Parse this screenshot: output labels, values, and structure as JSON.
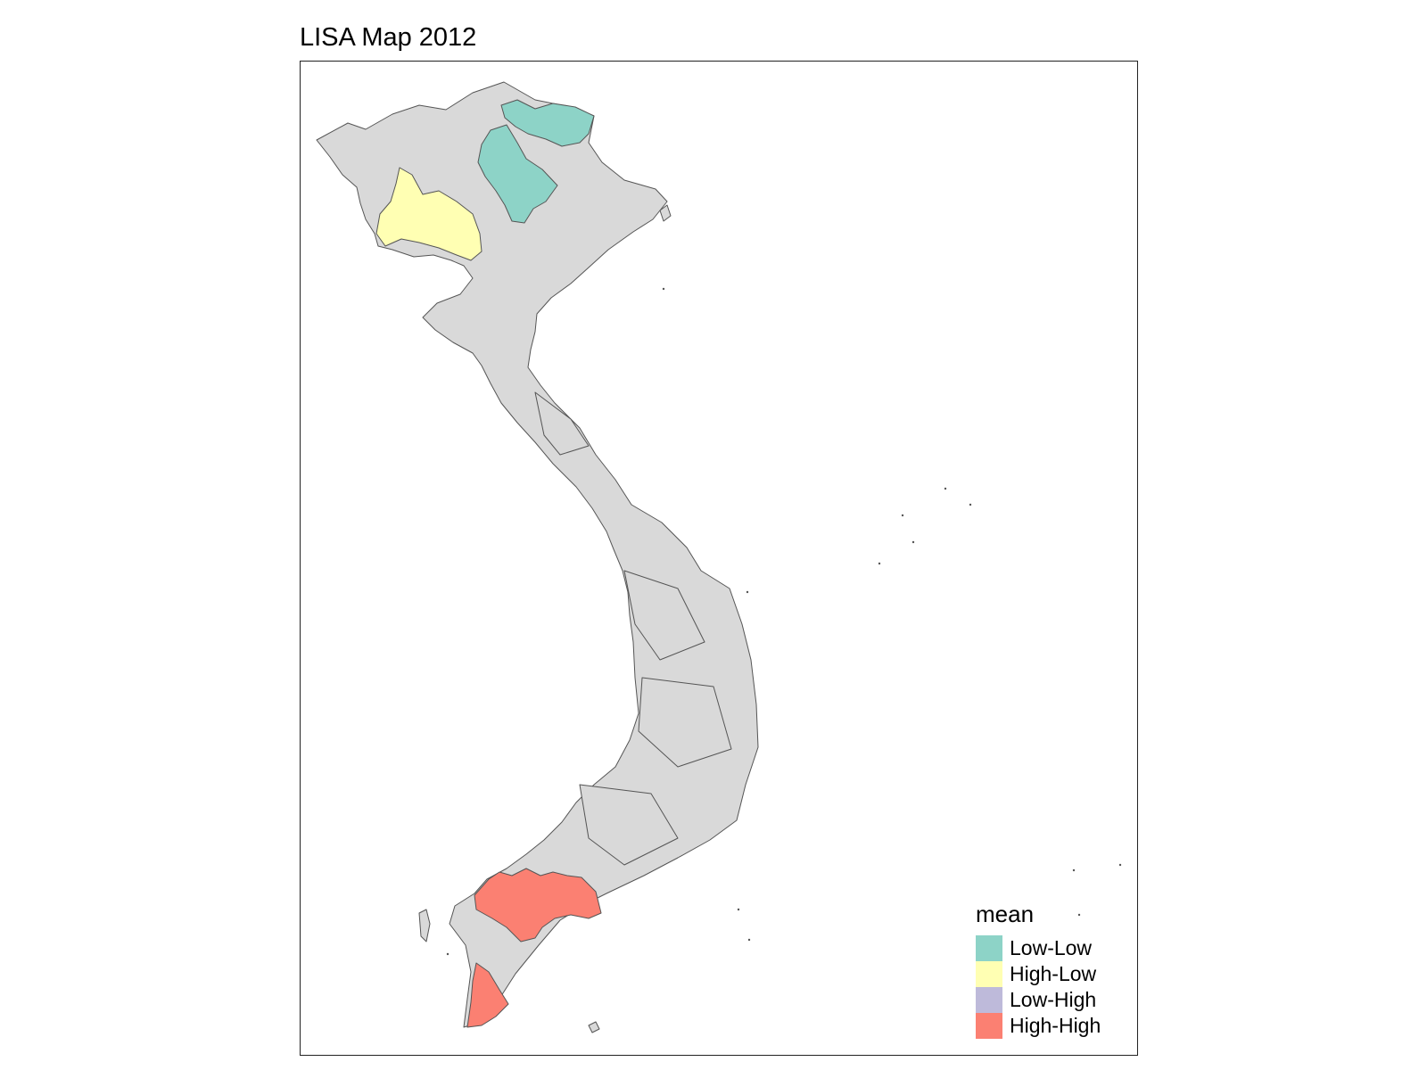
{
  "map": {
    "title": "LISA Map 2012",
    "legend": {
      "title": "mean",
      "items": [
        {
          "label": "Low-Low",
          "color": "#8dd3c7"
        },
        {
          "label": "High-Low",
          "color": "#ffffb3"
        },
        {
          "label": "Low-High",
          "color": "#bebada"
        },
        {
          "label": "High-High",
          "color": "#fb8072"
        }
      ]
    },
    "colors": {
      "not_significant": "#d9d9d9",
      "border": "#555555"
    }
  }
}
